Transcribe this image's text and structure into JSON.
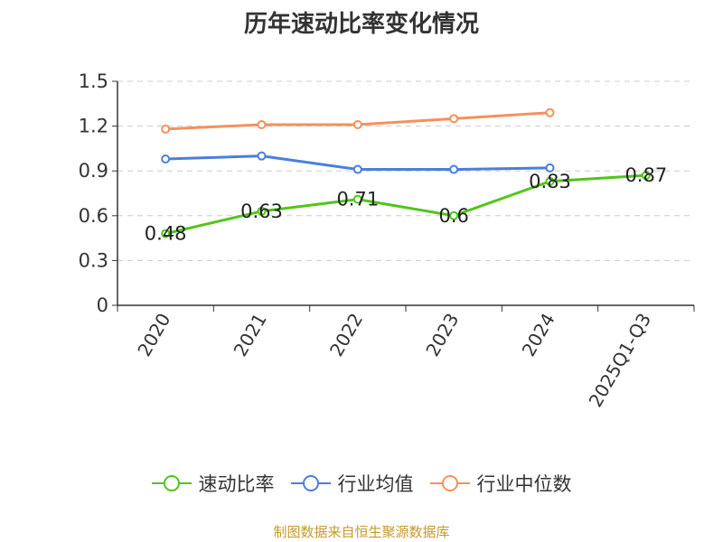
{
  "title": "历年速动比率变化情况",
  "source": "制图数据来自恒生聚源数据库",
  "chart_data": {
    "type": "line",
    "title": "历年速动比率变化情况",
    "categories": [
      "2020",
      "2021",
      "2022",
      "2023",
      "2024",
      "2025Q1-Q3"
    ],
    "ylim": [
      0,
      1.5
    ],
    "yticks": [
      "0",
      "0.3",
      "0.6",
      "0.9",
      "1.2",
      "1.5"
    ],
    "grid": true,
    "legend_position": "bottom",
    "series": [
      {
        "name": "速动比率",
        "color": "#52c41a",
        "values": [
          0.48,
          0.63,
          0.71,
          0.6,
          0.83,
          0.87
        ],
        "labels": [
          "0.48",
          "0.63",
          "0.71",
          "0.6",
          "0.83",
          "0.87"
        ]
      },
      {
        "name": "行业均值",
        "color": "#4a7fdb",
        "values": [
          0.98,
          1.0,
          0.91,
          0.91,
          0.92,
          null
        ]
      },
      {
        "name": "行业中位数",
        "color": "#f5915b",
        "values": [
          1.18,
          1.21,
          1.21,
          1.25,
          1.29,
          null
        ]
      }
    ]
  }
}
